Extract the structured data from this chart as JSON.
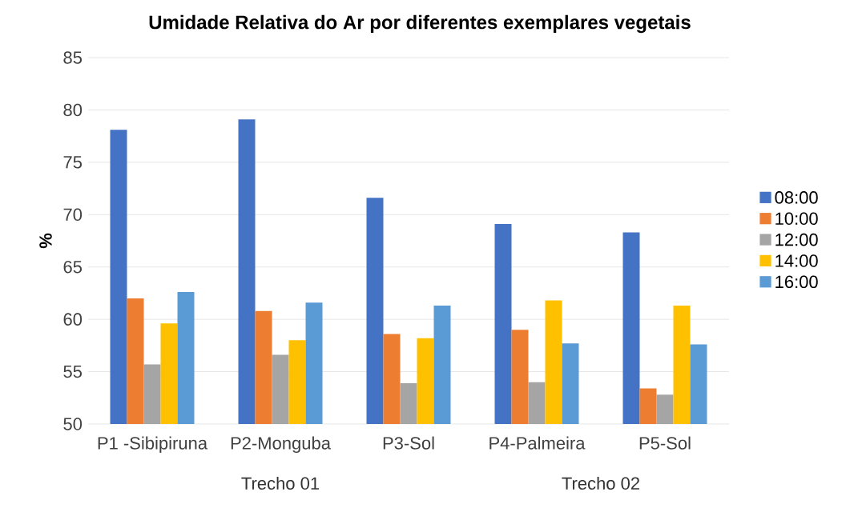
{
  "chart_data": {
    "type": "bar",
    "title": "Umidade Relativa do Ar por diferentes exemplares vegetais",
    "ylabel": "%",
    "categories": [
      "P1 -Sibipiruna",
      "P2-Monguba",
      "P3-Sol",
      "P4-Palmeira",
      "P5-Sol"
    ],
    "series": [
      {
        "name": "08:00",
        "color": "#4472c4",
        "values": [
          78.1,
          79.1,
          71.6,
          69.1,
          68.3
        ]
      },
      {
        "name": "10:00",
        "color": "#ed7d31",
        "values": [
          62.0,
          60.8,
          58.6,
          59.0,
          53.4
        ]
      },
      {
        "name": "12:00",
        "color": "#a5a5a5",
        "values": [
          55.7,
          56.6,
          53.9,
          54.0,
          52.8
        ]
      },
      {
        "name": "14:00",
        "color": "#ffc000",
        "values": [
          59.6,
          58.0,
          58.2,
          61.8,
          61.3
        ]
      },
      {
        "name": "16:00",
        "color": "#5b9bd5",
        "values": [
          62.6,
          61.6,
          61.3,
          57.7,
          57.6
        ]
      }
    ],
    "annotations": [
      "Trecho 01",
      "Trecho 02"
    ],
    "ylim": [
      50,
      85
    ],
    "yticks": [
      50,
      55,
      60,
      65,
      70,
      75,
      80,
      85
    ],
    "grid": "y",
    "legend": "right"
  }
}
